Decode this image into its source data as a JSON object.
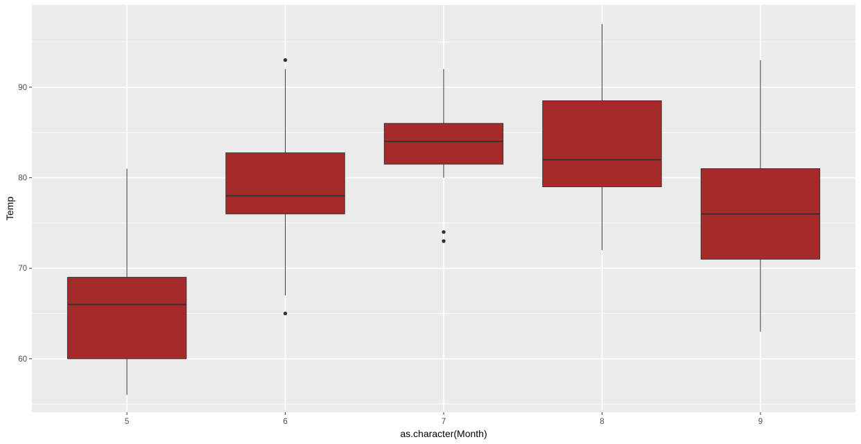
{
  "chart_data": {
    "type": "box",
    "title": "",
    "xlabel": "as.character(Month)",
    "ylabel": "Temp",
    "categories": [
      "5",
      "6",
      "7",
      "8",
      "9"
    ],
    "ylim": [
      54.1,
      99.1
    ],
    "yticks": [
      60,
      70,
      80,
      90
    ],
    "grid": true,
    "legend": null,
    "fill_color": "#A52A2A",
    "line_color": "#333333",
    "panel_background": "#EBEBEB",
    "boxes": [
      {
        "category": "5",
        "lower_whisker": 56,
        "q1": 60,
        "median": 66,
        "q3": 69,
        "upper_whisker": 81,
        "outliers": []
      },
      {
        "category": "6",
        "lower_whisker": 67,
        "q1": 76,
        "median": 78,
        "q3": 82.75,
        "upper_whisker": 92,
        "outliers": [
          65,
          93
        ]
      },
      {
        "category": "7",
        "lower_whisker": 80,
        "q1": 81.5,
        "median": 84,
        "q3": 86,
        "upper_whisker": 92,
        "outliers": [
          73,
          74
        ]
      },
      {
        "category": "8",
        "lower_whisker": 72,
        "q1": 79,
        "median": 82,
        "q3": 88.5,
        "upper_whisker": 97,
        "outliers": []
      },
      {
        "category": "9",
        "lower_whisker": 63,
        "q1": 71,
        "median": 76,
        "q3": 81,
        "upper_whisker": 93,
        "outliers": []
      }
    ]
  }
}
